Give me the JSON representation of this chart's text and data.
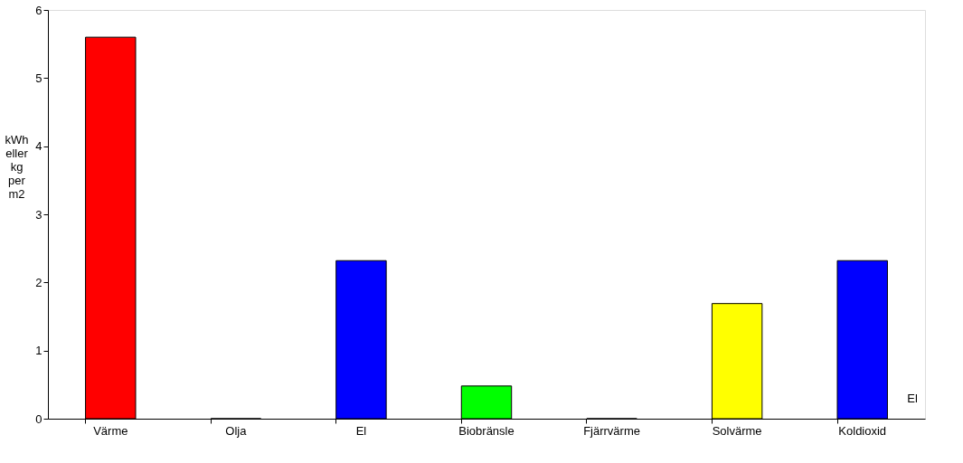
{
  "chart_data": {
    "type": "bar",
    "ylabel": "kWh eller kg per m2",
    "categories": [
      "Värme",
      "Olja",
      "El",
      "Biobränsle",
      "Fjärrvärme",
      "Solvärme",
      "Koldioxid"
    ],
    "values": [
      5.6,
      0,
      2.32,
      0.48,
      0,
      1.69,
      2.32
    ],
    "colors": [
      "#ff0000",
      "#0000ff",
      "#0000ff",
      "#00ff00",
      "#0000ff",
      "#ffff00",
      "#0000ff"
    ],
    "ylim": [
      0,
      6
    ],
    "yticks": [
      0,
      1,
      2,
      3,
      4,
      5,
      6
    ],
    "grid": false,
    "annotations": [
      "El"
    ]
  }
}
